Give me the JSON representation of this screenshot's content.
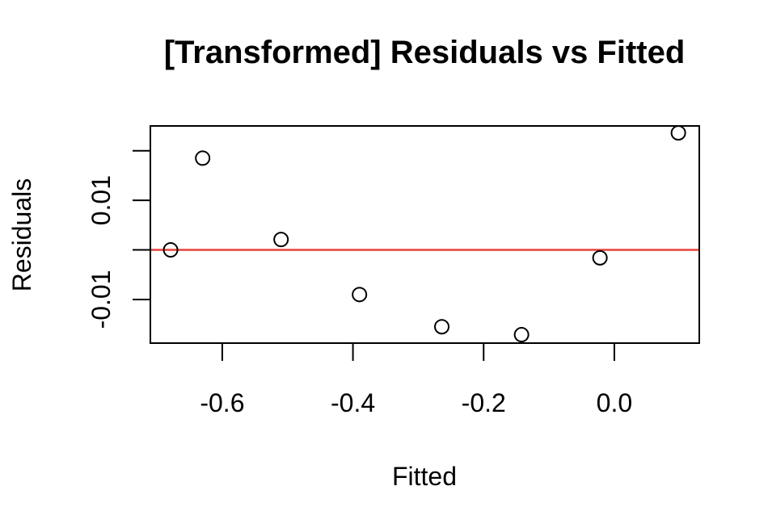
{
  "chart_data": {
    "type": "scatter",
    "title": "[Transformed] Residuals vs Fitted",
    "xlabel": "Fitted",
    "ylabel": "Residuals",
    "xlim": [
      -0.71,
      0.13
    ],
    "ylim": [
      -0.0188,
      0.025
    ],
    "x_ticks": [
      -0.6,
      -0.4,
      -0.2,
      0.0
    ],
    "x_tick_labels": [
      "-0.6",
      "-0.4",
      "-0.2",
      "0.0"
    ],
    "y_ticks": [
      -0.01,
      0.0,
      0.01,
      0.02
    ],
    "y_tick_labels": [
      "-0.01",
      "",
      "0.01",
      ""
    ],
    "reference_line": {
      "y": 0,
      "color": "#e8423a"
    },
    "point_color": "#000000",
    "points": [
      {
        "x": -0.679,
        "y": 0.0
      },
      {
        "x": -0.63,
        "y": 0.0185
      },
      {
        "x": -0.51,
        "y": 0.0021
      },
      {
        "x": -0.39,
        "y": -0.009
      },
      {
        "x": -0.264,
        "y": -0.0155
      },
      {
        "x": -0.142,
        "y": -0.0171
      },
      {
        "x": -0.022,
        "y": -0.0016
      },
      {
        "x": 0.098,
        "y": 0.0236
      }
    ],
    "grid": false,
    "legend": "none"
  }
}
